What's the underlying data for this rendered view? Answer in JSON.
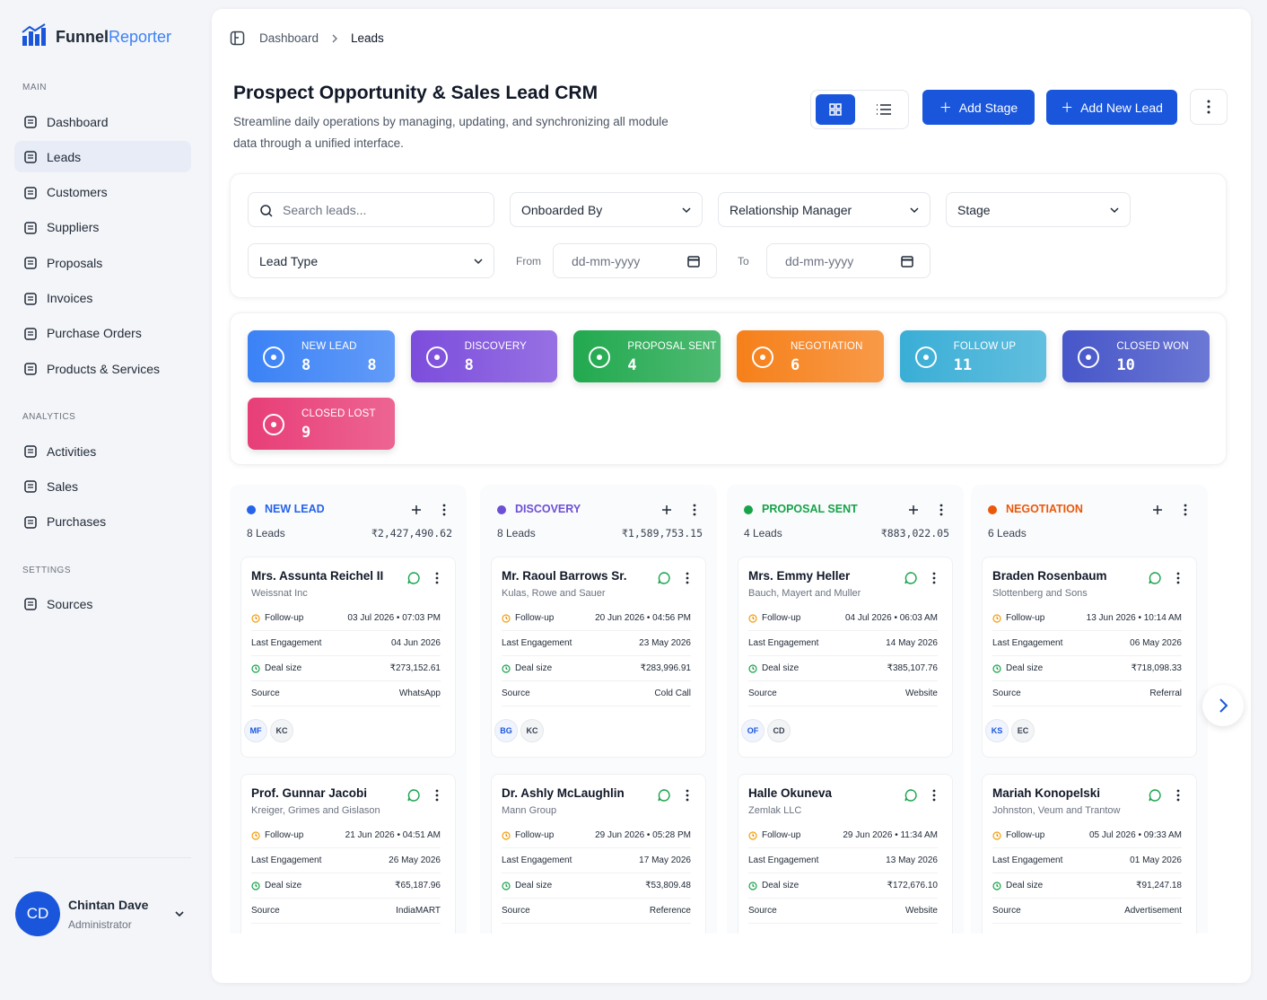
{
  "brand": {
    "part1": "Funnel",
    "part2": "Reporter"
  },
  "sidebar": {
    "sections": [
      {
        "title": "MAIN",
        "items": [
          {
            "label": "Dashboard"
          },
          {
            "label": "Leads",
            "active": true
          },
          {
            "label": "Customers"
          },
          {
            "label": "Suppliers"
          },
          {
            "label": "Proposals"
          },
          {
            "label": "Invoices"
          },
          {
            "label": "Purchase Orders"
          },
          {
            "label": "Products & Services"
          }
        ]
      },
      {
        "title": "ANALYTICS",
        "items": [
          {
            "label": "Activities"
          },
          {
            "label": "Sales"
          },
          {
            "label": "Purchases"
          }
        ]
      },
      {
        "title": "SETTINGS",
        "items": [
          {
            "label": "Sources"
          }
        ]
      }
    ]
  },
  "user": {
    "initials": "CD",
    "name": "Chintan Dave",
    "role": "Administrator"
  },
  "breadcrumb": [
    "Dashboard",
    "Leads"
  ],
  "header": {
    "title": "Prospect Opportunity & Sales Lead CRM",
    "description": "Streamline daily operations by managing, updating, and synchronizing all module data through a unified interface."
  },
  "buttons": {
    "add_stage": "Add Stage",
    "add_lead": "Add New Lead"
  },
  "filters": {
    "search": "Search leads...",
    "onboarded_by": "Onboarded By",
    "relationship_manager": "Relationship Manager",
    "stage": "Stage",
    "lead_type": "Lead Type",
    "from": "From",
    "to": "To",
    "date_placeholder": "dd-mm-yyyy"
  },
  "stages": [
    {
      "label": "NEW LEAD",
      "count": 8,
      "count_right": 8,
      "color": "#3b82f6"
    },
    {
      "label": "DISCOVERY",
      "count": 8,
      "color": "#7c4ddc"
    },
    {
      "label": "PROPOSAL SENT",
      "count": 4,
      "color": "#22a94f"
    },
    {
      "label": "NEGOTIATION",
      "count": 6,
      "color": "#f6801a"
    },
    {
      "label": "FOLLOW UP",
      "count": 11,
      "color": "#3aaed6"
    },
    {
      "label": "CLOSED WON",
      "count": 10,
      "color": "#4756c9"
    },
    {
      "label": "CLOSED LOST",
      "count": 9,
      "color": "#e83e78"
    }
  ],
  "card_labels": {
    "followup": "Follow-up",
    "engagement": "Last Engagement",
    "deal": "Deal size",
    "source": "Source"
  },
  "columns": [
    {
      "name": "NEW LEAD",
      "color": "#2563eb",
      "leads": "8 Leads",
      "total": "₹2,427,490.62",
      "cards": [
        {
          "name": "Mrs. Assunta Reichel II",
          "company": "Weissnat Inc",
          "followup": "03 Jul 2026 • 07:03 PM",
          "engagement": "04 Jun 2026",
          "deal": "₹273,152.61",
          "source": "WhatsApp",
          "avatars": [
            "MF",
            "KC"
          ]
        },
        {
          "name": "Prof. Gunnar Jacobi",
          "company": "Kreiger, Grimes and Gislason",
          "followup": "21 Jun 2026 • 04:51 AM",
          "engagement": "26 May 2026",
          "deal": "₹65,187.96",
          "source": "IndiaMART"
        }
      ]
    },
    {
      "name": "DISCOVERY",
      "color": "#6d4fd6",
      "leads": "8 Leads",
      "total": "₹1,589,753.15",
      "cards": [
        {
          "name": "Mr. Raoul Barrows Sr.",
          "company": "Kulas, Rowe and Sauer",
          "followup": "20 Jun 2026 • 04:56 PM",
          "engagement": "23 May 2026",
          "deal": "₹283,996.91",
          "source": "Cold Call",
          "avatars": [
            "BG",
            "KC"
          ]
        },
        {
          "name": "Dr. Ashly McLaughlin",
          "company": "Mann Group",
          "followup": "29 Jun 2026 • 05:28 PM",
          "engagement": "17 May 2026",
          "deal": "₹53,809.48",
          "source": "Reference"
        }
      ]
    },
    {
      "name": "PROPOSAL SENT",
      "color": "#16a34a",
      "leads": "4 Leads",
      "total": "₹883,022.05",
      "cards": [
        {
          "name": "Mrs. Emmy Heller",
          "company": "Bauch, Mayert and Muller",
          "followup": "04 Jul 2026 • 06:03 AM",
          "engagement": "14 May 2026",
          "deal": "₹385,107.76",
          "source": "Website",
          "avatars": [
            "OF",
            "CD"
          ]
        },
        {
          "name": "Halle Okuneva",
          "company": "Zemlak LLC",
          "followup": "29 Jun 2026 • 11:34 AM",
          "engagement": "13 May 2026",
          "deal": "₹172,676.10",
          "source": "Website"
        }
      ]
    },
    {
      "name": "NEGOTIATION",
      "color": "#ea580c",
      "leads": "6 Leads",
      "cards": [
        {
          "name": "Braden Rosenbaum",
          "company": "Slottenberg and Sons",
          "followup": "13 Jun 2026 • 10:14 AM",
          "engagement": "06 May 2026",
          "deal": "₹718,098.33",
          "source": "Referral",
          "avatars": [
            "KS",
            "EC"
          ]
        },
        {
          "name": "Mariah Konopelski",
          "company": "Johnston, Veum and Trantow",
          "followup": "05 Jul 2026 • 09:33 AM",
          "engagement": "01 May 2026",
          "deal": "₹91,247.18",
          "source": "Advertisement"
        }
      ]
    }
  ]
}
